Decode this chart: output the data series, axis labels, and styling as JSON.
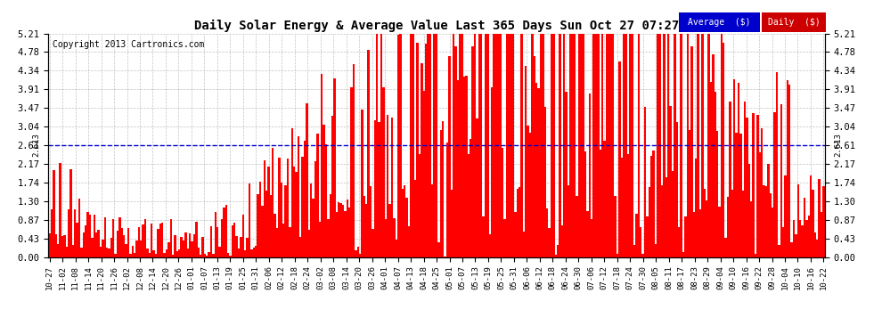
{
  "title": "Daily Solar Energy & Average Value Last 365 Days Sun Oct 27 07:27",
  "copyright": "Copyright 2013 Cartronics.com",
  "average_value": 2.613,
  "average_label": "2.613",
  "bar_color": "#FF0000",
  "average_line_color": "#0000CD",
  "background_color": "#FFFFFF",
  "plot_bg_color": "#FFFFFF",
  "grid_color": "#AAAAAA",
  "ylim": [
    0.0,
    5.21
  ],
  "yticks": [
    0.0,
    0.43,
    0.87,
    1.3,
    1.74,
    2.17,
    2.61,
    3.04,
    3.47,
    3.91,
    4.34,
    4.78,
    5.21
  ],
  "legend_avg_bg": "#0000CC",
  "legend_daily_bg": "#CC0000",
  "legend_text_color": "#FFFFFF",
  "x_labels": [
    "10-27",
    "11-02",
    "11-08",
    "11-14",
    "11-20",
    "11-26",
    "12-02",
    "12-08",
    "12-14",
    "12-20",
    "12-26",
    "01-01",
    "01-07",
    "01-13",
    "01-19",
    "01-25",
    "01-31",
    "02-06",
    "02-12",
    "02-18",
    "02-24",
    "03-02",
    "03-08",
    "03-14",
    "03-20",
    "03-26",
    "04-01",
    "04-07",
    "04-13",
    "04-18",
    "04-25",
    "05-01",
    "05-07",
    "05-13",
    "05-19",
    "05-25",
    "05-31",
    "06-06",
    "06-12",
    "06-18",
    "06-24",
    "06-30",
    "07-06",
    "07-12",
    "07-18",
    "07-24",
    "07-30",
    "08-05",
    "08-11",
    "08-17",
    "08-23",
    "08-29",
    "09-04",
    "09-10",
    "09-16",
    "09-22",
    "09-28",
    "10-04",
    "10-10",
    "10-16",
    "10-22"
  ]
}
